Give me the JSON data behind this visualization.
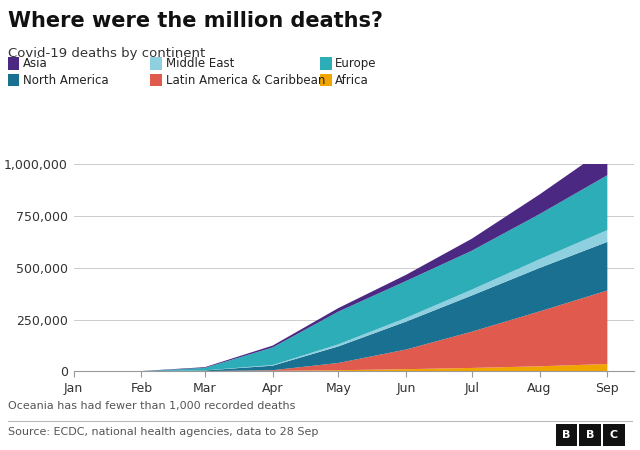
{
  "title": "Where were the million deaths?",
  "subtitle": "Covid-19 deaths by continent",
  "note": "Oceania has had fewer than 1,000 recorded deaths",
  "source": "Source: ECDC, national health agencies, data to 28 Sep",
  "background_color": "#ffffff",
  "legend_row1": [
    {
      "name": "Asia",
      "color": "#4b2882"
    },
    {
      "name": "Middle East",
      "color": "#8ecfe0"
    },
    {
      "name": "Europe",
      "color": "#2dadb8"
    }
  ],
  "legend_row2": [
    {
      "name": "North America",
      "color": "#1a7090"
    },
    {
      "name": "Latin America & Caribbean",
      "color": "#e05a4e"
    },
    {
      "name": "Africa",
      "color": "#f0a500"
    }
  ],
  "months": [
    "Jan",
    "Feb",
    "Mar",
    "Apr",
    "May",
    "Jun",
    "Jul",
    "Aug",
    "Sep"
  ],
  "month_positions": [
    0,
    31,
    60,
    91,
    121,
    152,
    182,
    213,
    244
  ],
  "stack_order": [
    "Africa",
    "Latin America & Caribbean",
    "North America",
    "Middle East",
    "Europe",
    "Asia"
  ],
  "colors": {
    "Africa": "#f0a500",
    "Latin America & Caribbean": "#e05a4e",
    "North America": "#1a7090",
    "Middle East": "#8ecfe0",
    "Europe": "#2dadb8",
    "Asia": "#4b2882"
  },
  "data": {
    "Africa": [
      0,
      100,
      500,
      2000,
      5000,
      10000,
      16000,
      24000,
      35000
    ],
    "Latin America & Caribbean": [
      0,
      0,
      300,
      3000,
      35000,
      95000,
      175000,
      265000,
      355000
    ],
    "North America": [
      0,
      50,
      3000,
      22000,
      80000,
      135000,
      175000,
      210000,
      235000
    ],
    "Middle East": [
      0,
      0,
      500,
      3000,
      10000,
      18000,
      28000,
      42000,
      57000
    ],
    "Europe": [
      0,
      300,
      12000,
      85000,
      158000,
      178000,
      188000,
      218000,
      265000
    ],
    "Asia": [
      0,
      600,
      3500,
      9000,
      17000,
      30000,
      58000,
      95000,
      135000
    ]
  },
  "ylim": [
    0,
    1000000
  ],
  "yticks": [
    0,
    250000,
    500000,
    750000,
    1000000
  ],
  "ytick_labels": [
    "0",
    "250,000",
    "500,000",
    "750,000",
    "1,000,000"
  ]
}
